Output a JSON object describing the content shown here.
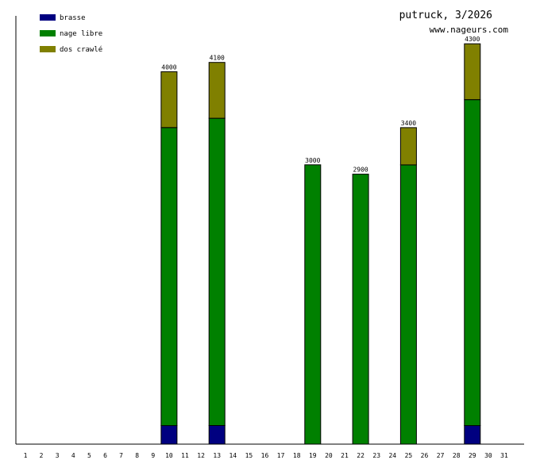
{
  "header": {
    "title": "putruck, 3/2026",
    "site": "www.nageurs.com"
  },
  "chart_data": {
    "type": "bar",
    "stacked": true,
    "title": "putruck, 3/2026",
    "xlabel": "",
    "ylabel": "",
    "ylim": [
      0,
      4600
    ],
    "categories": [
      "1",
      "2",
      "3",
      "4",
      "5",
      "6",
      "7",
      "8",
      "9",
      "10",
      "11",
      "12",
      "13",
      "14",
      "15",
      "16",
      "17",
      "18",
      "19",
      "20",
      "21",
      "22",
      "23",
      "24",
      "25",
      "26",
      "27",
      "28",
      "29",
      "30",
      "31"
    ],
    "series": [
      {
        "name": "brasse",
        "color": "#000080",
        "values": [
          0,
          0,
          0,
          0,
          0,
          0,
          0,
          0,
          0,
          200,
          0,
          0,
          200,
          0,
          0,
          0,
          0,
          0,
          0,
          0,
          0,
          0,
          0,
          0,
          0,
          0,
          0,
          0,
          200,
          0,
          0
        ]
      },
      {
        "name": "nage libre",
        "color": "#008000",
        "values": [
          0,
          0,
          0,
          0,
          0,
          0,
          0,
          0,
          0,
          3200,
          0,
          0,
          3300,
          0,
          0,
          0,
          0,
          0,
          3000,
          0,
          0,
          2900,
          0,
          0,
          3000,
          0,
          0,
          0,
          3500,
          0,
          0
        ]
      },
      {
        "name": "dos crawlé",
        "color": "#808000",
        "values": [
          0,
          0,
          0,
          0,
          0,
          0,
          0,
          0,
          0,
          600,
          0,
          0,
          600,
          0,
          0,
          0,
          0,
          0,
          0,
          0,
          0,
          0,
          0,
          0,
          400,
          0,
          0,
          0,
          600,
          0,
          0
        ]
      }
    ],
    "totals": [
      {
        "day": "10",
        "label": "4000"
      },
      {
        "day": "13",
        "label": "4100"
      },
      {
        "day": "19",
        "label": "3000"
      },
      {
        "day": "22",
        "label": "2900"
      },
      {
        "day": "25",
        "label": "3400"
      },
      {
        "day": "29",
        "label": "4300"
      }
    ],
    "legend_position": "top-left",
    "grid": false
  }
}
